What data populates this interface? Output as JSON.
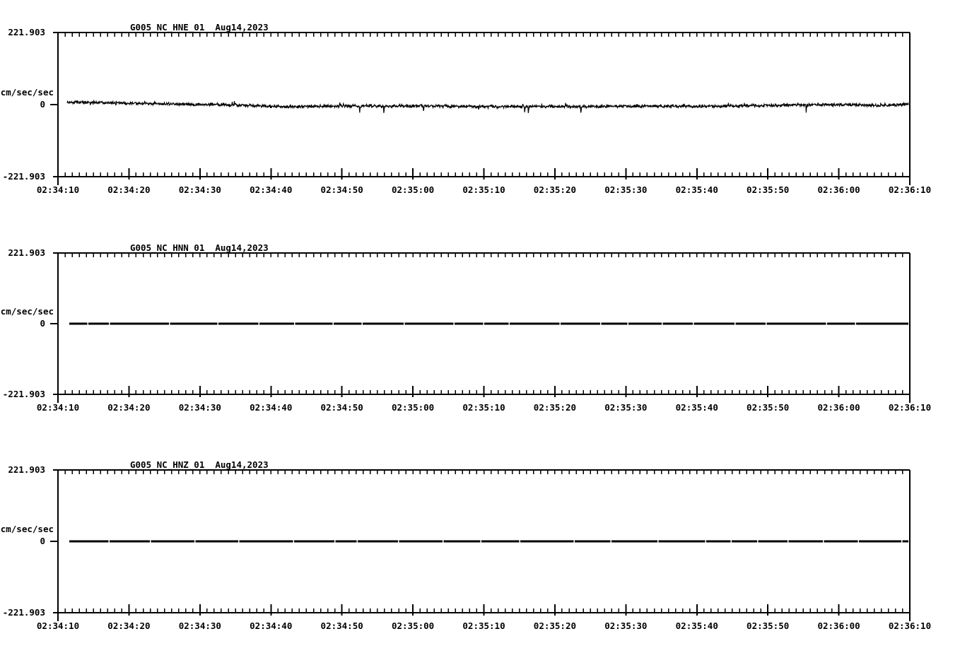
{
  "page": {
    "background": "#ffffff",
    "foreground": "#000000"
  },
  "chart_data": [
    {
      "type": "line",
      "title": "G005_NC_HNE_01",
      "date": "Aug14,2023",
      "ylabel": "cm/sec/sec",
      "ylim": [
        -221.903,
        221.903
      ],
      "y_tick_labels": {
        "max": "221.903",
        "zero": "0",
        "min": "-221.903"
      },
      "x_tick_labels": [
        "02:34:10",
        "02:34:20",
        "02:34:30",
        "02:34:40",
        "02:34:50",
        "02:35:00",
        "02:35:10",
        "02:35:20",
        "02:35:30",
        "02:35:40",
        "02:35:50",
        "02:36:00",
        "02:36:10"
      ],
      "x_range_seconds": 120,
      "x_major_step_seconds": 10,
      "x_minor_step_seconds": 1,
      "grid": false,
      "legend": "none",
      "signal": {
        "kind": "noise",
        "mean_cm_s2": 0,
        "typical_amplitude_cm_s2": 8,
        "peak_amplitude_cm_s2": 25,
        "seed": 19,
        "drift_keypoints": [
          [
            0,
            8
          ],
          [
            10,
            4
          ],
          [
            22,
            0
          ],
          [
            32,
            -6.5
          ],
          [
            42,
            -4.5
          ],
          [
            52,
            -4.5
          ],
          [
            62,
            -5.5
          ],
          [
            72,
            -6.5
          ],
          [
            82,
            -4.5
          ],
          [
            92,
            -5.5
          ],
          [
            102,
            -2
          ],
          [
            110,
            0
          ],
          [
            115,
            -2
          ],
          [
            119.8,
            0
          ]
        ]
      }
    },
    {
      "type": "line",
      "title": "G005_NC_HNN_01",
      "date": "Aug14,2023",
      "ylabel": "cm/sec/sec",
      "ylim": [
        -221.903,
        221.903
      ],
      "y_tick_labels": {
        "max": "221.903",
        "zero": "0",
        "min": "-221.903"
      },
      "x_tick_labels": [
        "02:34:10",
        "02:34:20",
        "02:34:30",
        "02:34:40",
        "02:34:50",
        "02:35:00",
        "02:35:10",
        "02:35:20",
        "02:35:30",
        "02:35:40",
        "02:35:50",
        "02:36:00",
        "02:36:10"
      ],
      "x_range_seconds": 120,
      "x_major_step_seconds": 10,
      "x_minor_step_seconds": 1,
      "grid": false,
      "legend": "none",
      "signal": {
        "kind": "flat",
        "value_cm_s2": 0,
        "seed": 7
      }
    },
    {
      "type": "line",
      "title": "G005_NC_HNZ_01",
      "date": "Aug14,2023",
      "ylabel": "cm/sec/sec",
      "ylim": [
        -221.903,
        221.903
      ],
      "y_tick_labels": {
        "max": "221.903",
        "zero": "0",
        "min": "-221.903"
      },
      "x_tick_labels": [
        "02:34:10",
        "02:34:20",
        "02:34:30",
        "02:34:40",
        "02:34:50",
        "02:35:00",
        "02:35:10",
        "02:35:20",
        "02:35:30",
        "02:35:40",
        "02:35:50",
        "02:36:00",
        "02:36:10"
      ],
      "x_range_seconds": 120,
      "x_major_step_seconds": 10,
      "x_minor_step_seconds": 1,
      "grid": false,
      "legend": "none",
      "signal": {
        "kind": "flat",
        "value_cm_s2": 0,
        "seed": 11
      }
    }
  ]
}
